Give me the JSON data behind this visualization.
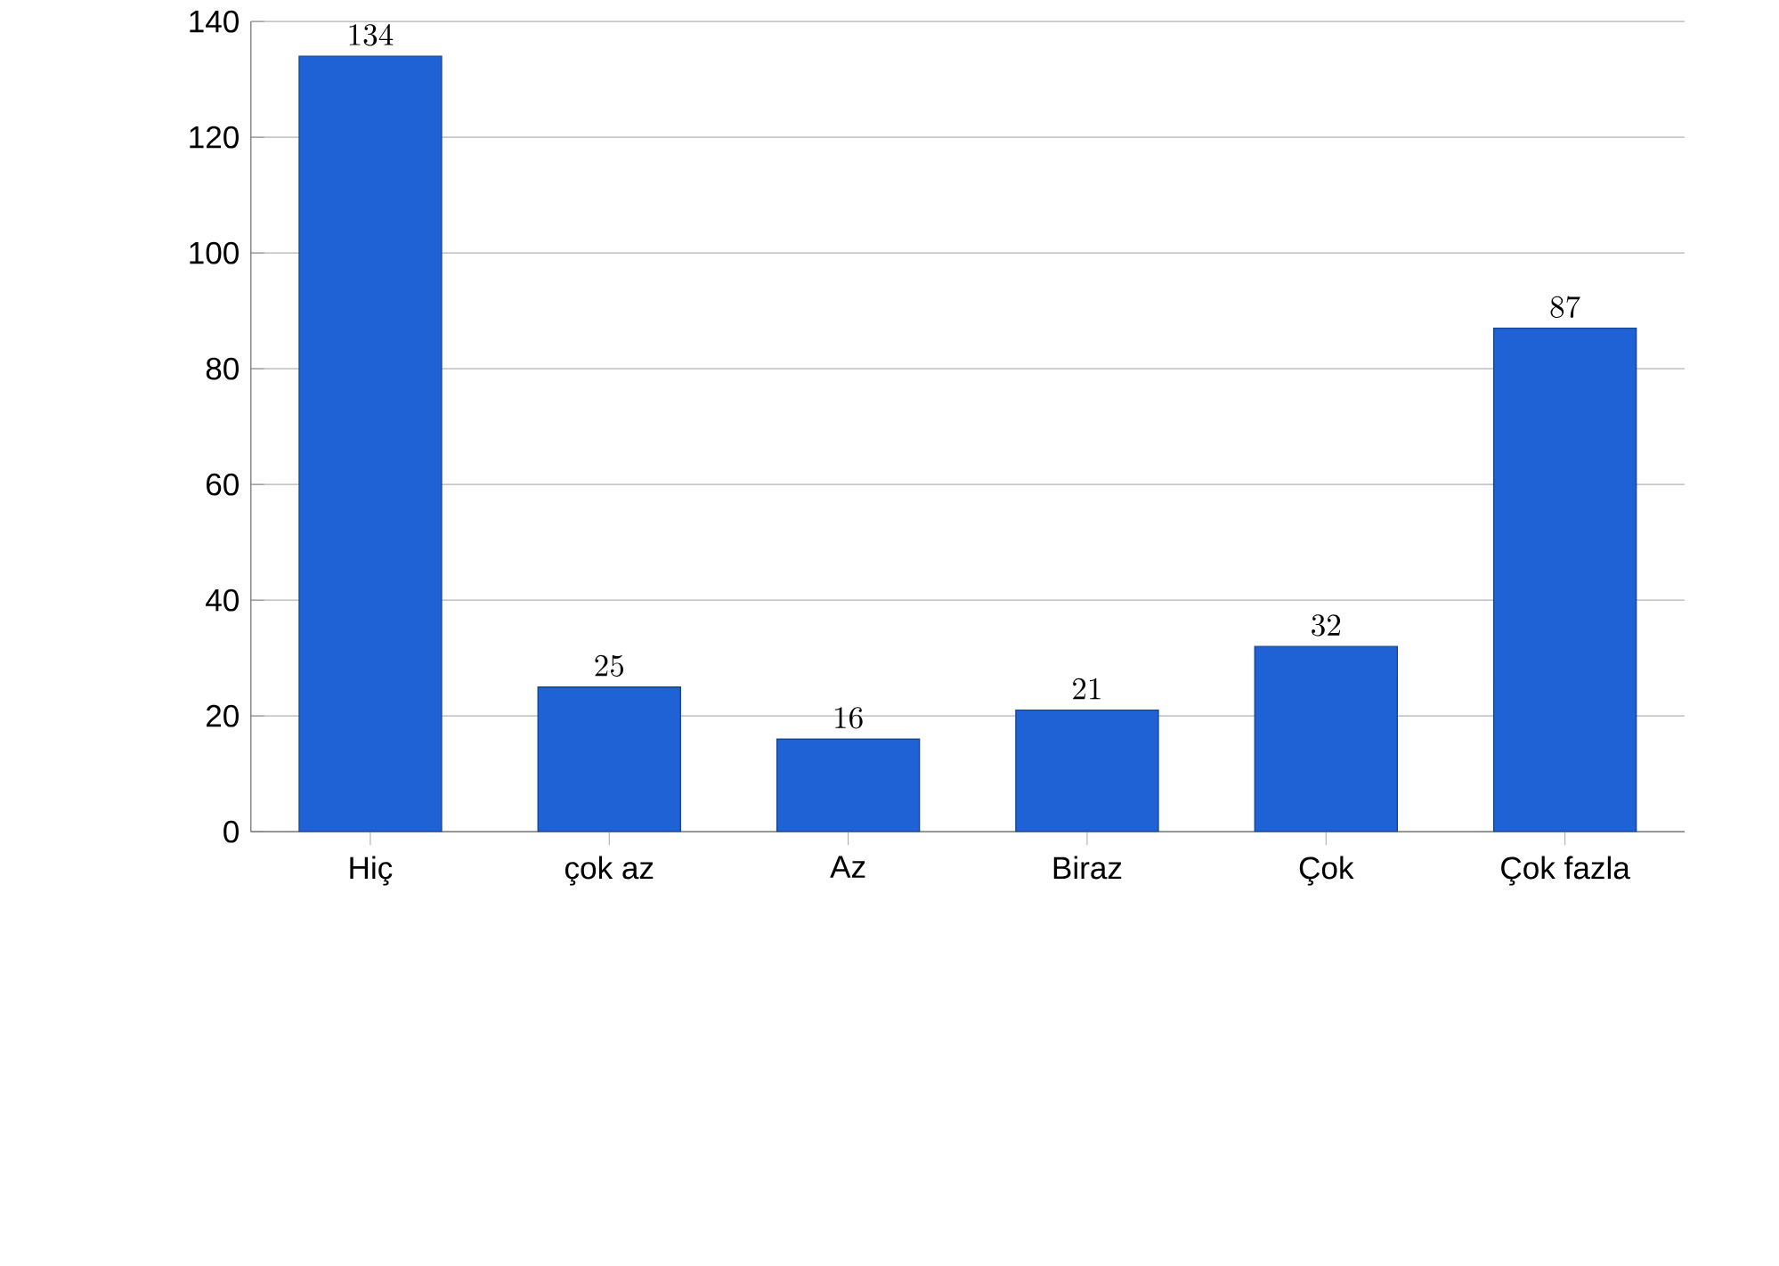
{
  "chart_data": {
    "type": "bar",
    "categories": [
      "Hiç",
      "çok az",
      "Az",
      "Biraz",
      "Çok",
      "Çok fazla"
    ],
    "values": [
      134,
      25,
      16,
      21,
      32,
      87
    ],
    "color": "#1f62d6",
    "ylim": [
      0,
      140
    ],
    "yticks": [
      0,
      20,
      40,
      60,
      80,
      100,
      120,
      140
    ],
    "grid": "y",
    "data_labels": true
  }
}
